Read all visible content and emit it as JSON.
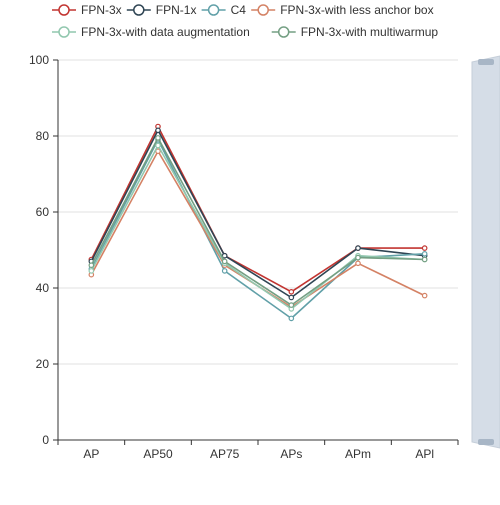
{
  "chart_data": {
    "type": "line",
    "categories": [
      "AP",
      "AP50",
      "AP75",
      "APs",
      "APm",
      "APl"
    ],
    "ylim": [
      0,
      100
    ],
    "yticks": [
      0,
      20,
      40,
      60,
      80,
      100
    ],
    "grid": true,
    "legend_position": "top",
    "series": [
      {
        "name": "FPN-3x",
        "color": "#c23531",
        "values": [
          47.5,
          82.5,
          48.5,
          39,
          50.5,
          50.5
        ]
      },
      {
        "name": "FPN-1x",
        "color": "#2f4554",
        "values": [
          47,
          81.5,
          48.5,
          37.5,
          50.5,
          48.5
        ]
      },
      {
        "name": "C4",
        "color": "#61a0a8",
        "values": [
          45,
          79,
          44.5,
          32,
          48,
          49
        ]
      },
      {
        "name": "FPN-3x-with less anchor box",
        "color": "#d48265",
        "values": [
          43.5,
          76,
          46,
          35,
          46.5,
          38
        ]
      },
      {
        "name": "FPN-3x-with data augmentation",
        "color": "#91c7ae",
        "values": [
          44.5,
          77.5,
          46.5,
          34.5,
          48.5,
          47.5
        ]
      },
      {
        "name": "FPN-3x-with multiwarmup",
        "color": "#749f83",
        "values": [
          46,
          79.5,
          47,
          35.5,
          48,
          47.5
        ]
      }
    ]
  }
}
